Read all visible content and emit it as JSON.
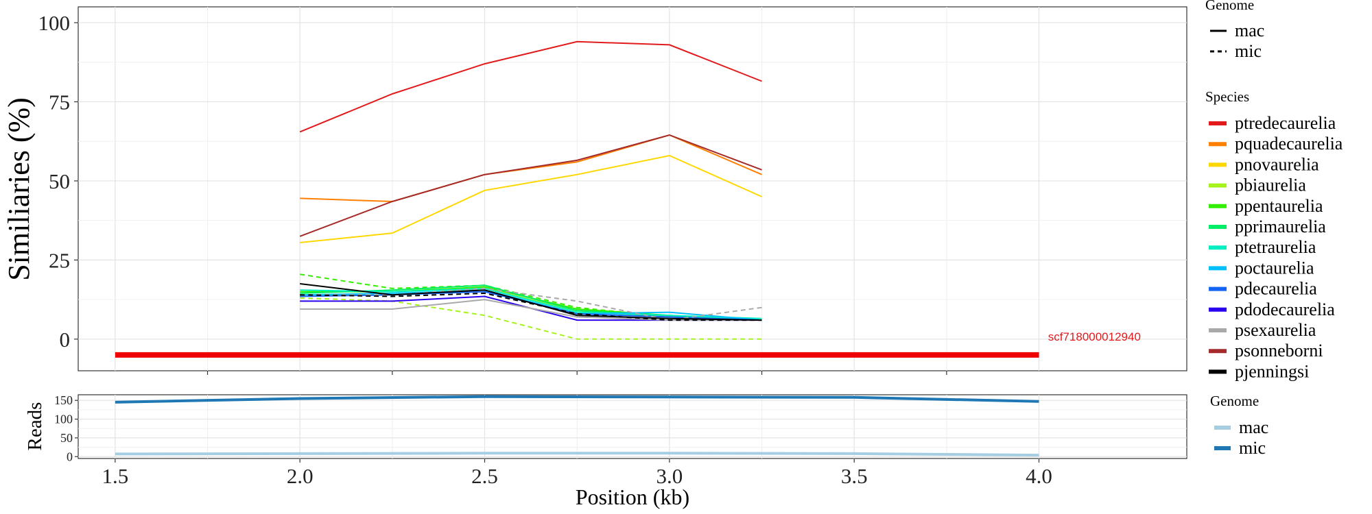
{
  "chart_data": [
    {
      "type": "line",
      "title": "",
      "xlabel": "",
      "ylabel": "Similiaries (%)",
      "xlim": [
        1.4,
        4.4
      ],
      "ylim": [
        -10,
        105
      ],
      "x_ticks": [
        1.75,
        2.25,
        2.75,
        3.25,
        3.75
      ],
      "y_ticks": [
        0,
        25,
        50,
        75,
        100
      ],
      "y_tick_labels": [
        "0",
        "25",
        "50",
        "75",
        "100"
      ],
      "grid": true,
      "annotation": {
        "text": "scf718000012940",
        "x": 4.15,
        "y": -0.5,
        "color": "#e31a1c"
      },
      "scaffold_bar": {
        "x_start": 1.5,
        "x_end": 4.0,
        "y": -5,
        "color": "#ee0000"
      },
      "legend_genome": {
        "title": "Genome",
        "entries": [
          {
            "label": "mac",
            "dash": "solid"
          },
          {
            "label": "mic",
            "dash": "dashed"
          }
        ]
      },
      "legend_species": {
        "title": "Species",
        "entries": [
          {
            "label": "ptredecaurelia",
            "color": "#e31a1c"
          },
          {
            "label": "pquadecaurelia",
            "color": "#ff7f00"
          },
          {
            "label": "pnovaurelia",
            "color": "#ffd700"
          },
          {
            "label": "pbiaurelia",
            "color": "#a6f21c"
          },
          {
            "label": "ppentaurelia",
            "color": "#33ee00"
          },
          {
            "label": "pprimaurelia",
            "color": "#00ee66"
          },
          {
            "label": "ptetraurelia",
            "color": "#00eec0"
          },
          {
            "label": "poctaurelia",
            "color": "#00bfff"
          },
          {
            "label": "pdecaurelia",
            "color": "#1464f4"
          },
          {
            "label": "pdodecaurelia",
            "color": "#2b00ee"
          },
          {
            "label": "psexaurelia",
            "color": "#a9a9a9"
          },
          {
            "label": "psonneborni",
            "color": "#a52a2a"
          },
          {
            "label": "pjenningsi",
            "color": "#000000"
          }
        ]
      },
      "x": [
        2.0,
        2.25,
        2.5,
        2.75,
        3.0,
        3.25
      ],
      "series": [
        {
          "name": "ptredecaurelia",
          "genome": "mac",
          "values": [
            65.5,
            77.5,
            87,
            94,
            93,
            81.5
          ]
        },
        {
          "name": "pquadecaurelia",
          "genome": "mac",
          "values": [
            44.5,
            43.5,
            52,
            56,
            64.5,
            52
          ]
        },
        {
          "name": "psonneborni",
          "genome": "mac",
          "values": [
            32.5,
            43.5,
            52,
            56.5,
            64.5,
            53.5
          ]
        },
        {
          "name": "pnovaurelia",
          "genome": "mac",
          "values": [
            30.5,
            33.5,
            47,
            52,
            58,
            45
          ]
        },
        {
          "name": "pbiaurelia",
          "genome": "mic",
          "values": [
            13,
            12,
            7.5,
            0,
            0,
            0
          ]
        },
        {
          "name": "pbiaurelia",
          "genome": "mac",
          "values": [
            14,
            14,
            16,
            9,
            7,
            6
          ]
        },
        {
          "name": "ppentaurelia",
          "genome": "mic",
          "values": [
            20.5,
            16,
            17,
            10,
            7,
            6
          ]
        },
        {
          "name": "ppentaurelia",
          "genome": "mac",
          "values": [
            15,
            15,
            16.5,
            9.5,
            7.5,
            6
          ]
        },
        {
          "name": "pprimaurelia",
          "genome": "mac",
          "values": [
            14.5,
            15.5,
            17,
            9,
            7.5,
            6
          ]
        },
        {
          "name": "ptetraurelia",
          "genome": "mac",
          "values": [
            15.5,
            15,
            16,
            8.5,
            7.5,
            6.5
          ]
        },
        {
          "name": "poctaurelia",
          "genome": "mac",
          "values": [
            14,
            14.5,
            15.5,
            8,
            8.5,
            6
          ]
        },
        {
          "name": "pdecaurelia",
          "genome": "mac",
          "values": [
            13.5,
            14,
            15,
            8,
            7,
            6
          ]
        },
        {
          "name": "pdodecaurelia",
          "genome": "mac",
          "values": [
            12,
            12,
            13.5,
            6,
            6,
            6
          ]
        },
        {
          "name": "psexaurelia",
          "genome": "mac",
          "values": [
            9.5,
            9.5,
            12.5,
            7,
            6,
            6
          ]
        },
        {
          "name": "psexaurelia",
          "genome": "mic",
          "values": [
            14,
            14,
            16,
            12,
            6,
            10
          ]
        },
        {
          "name": "pjenningsi",
          "genome": "mac",
          "values": [
            17.5,
            14,
            15.5,
            7.5,
            6.5,
            6
          ]
        },
        {
          "name": "pjenningsi",
          "genome": "mic",
          "values": [
            14,
            13.5,
            14.5,
            8,
            6,
            6
          ]
        }
      ]
    },
    {
      "type": "line",
      "title": "",
      "xlabel": "Position (kb)",
      "ylabel": "Reads",
      "xlim": [
        1.4,
        4.4
      ],
      "ylim": [
        -5,
        165
      ],
      "x_ticks": [
        1.5,
        2.0,
        2.5,
        3.0,
        3.5,
        4.0
      ],
      "x_tick_labels": [
        "1.5",
        "2.0",
        "2.5",
        "3.0",
        "3.5",
        "4.0"
      ],
      "y_ticks": [
        0,
        50,
        100,
        150
      ],
      "y_tick_labels": [
        "0",
        "50",
        "100",
        "150"
      ],
      "grid": true,
      "legend": {
        "title": "Genome",
        "entries": [
          {
            "label": "mac",
            "color": "#a6cee3"
          },
          {
            "label": "mic",
            "color": "#1f78b4"
          }
        ]
      },
      "x": [
        1.5,
        2.0,
        2.5,
        3.0,
        3.5,
        4.0
      ],
      "series": [
        {
          "name": "mic",
          "color": "#1f78b4",
          "values": [
            145,
            155,
            160,
            159,
            158,
            147
          ]
        },
        {
          "name": "mac",
          "color": "#a6cee3",
          "values": [
            7,
            8,
            9,
            9,
            8,
            4
          ]
        }
      ]
    }
  ]
}
